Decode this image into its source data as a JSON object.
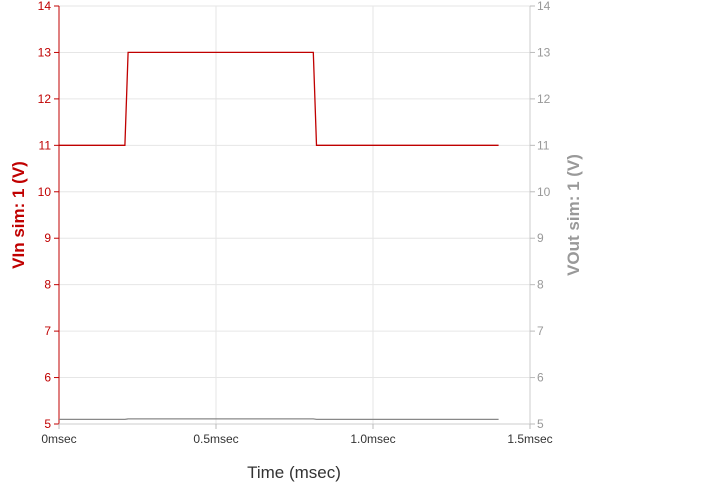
{
  "chart_data": {
    "type": "line",
    "xlabel": "Time (msec)",
    "ylabel_left": "VIn sim: 1 (V)",
    "ylabel_right": "VOut sim: 1 (V)",
    "xlim": [
      0,
      1.5
    ],
    "ylim_left": [
      5,
      14
    ],
    "ylim_right": [
      5,
      14
    ],
    "x_ticks": [
      {
        "value": 0,
        "label": "0msec"
      },
      {
        "value": 0.5,
        "label": "0.5msec"
      },
      {
        "value": 1.0,
        "label": "1.0msec"
      },
      {
        "value": 1.5,
        "label": "1.5msec"
      }
    ],
    "y_ticks_left": [
      "5",
      "6",
      "7",
      "8",
      "9",
      "10",
      "11",
      "12",
      "13",
      "14"
    ],
    "y_ticks_right": [
      "5",
      "6",
      "7",
      "8",
      "9",
      "10",
      "11",
      "12",
      "13",
      "14"
    ],
    "grid": true,
    "colors": {
      "vin": "#c00000",
      "vout": "#888888",
      "left_axis": "#c00000",
      "right_axis": "#999999",
      "grid": "#e6e6e6"
    },
    "series": [
      {
        "axis": "left",
        "x": [
          0,
          0.21,
          0.22,
          0.81,
          0.82,
          1.4
        ],
        "y": [
          11,
          11,
          13,
          13,
          11,
          11
        ]
      },
      {
        "axis": "right",
        "x": [
          0,
          0.21,
          0.22,
          0.81,
          0.82,
          1.4
        ],
        "y": [
          5.1,
          5.1,
          5.11,
          5.11,
          5.1,
          5.1
        ]
      }
    ]
  }
}
